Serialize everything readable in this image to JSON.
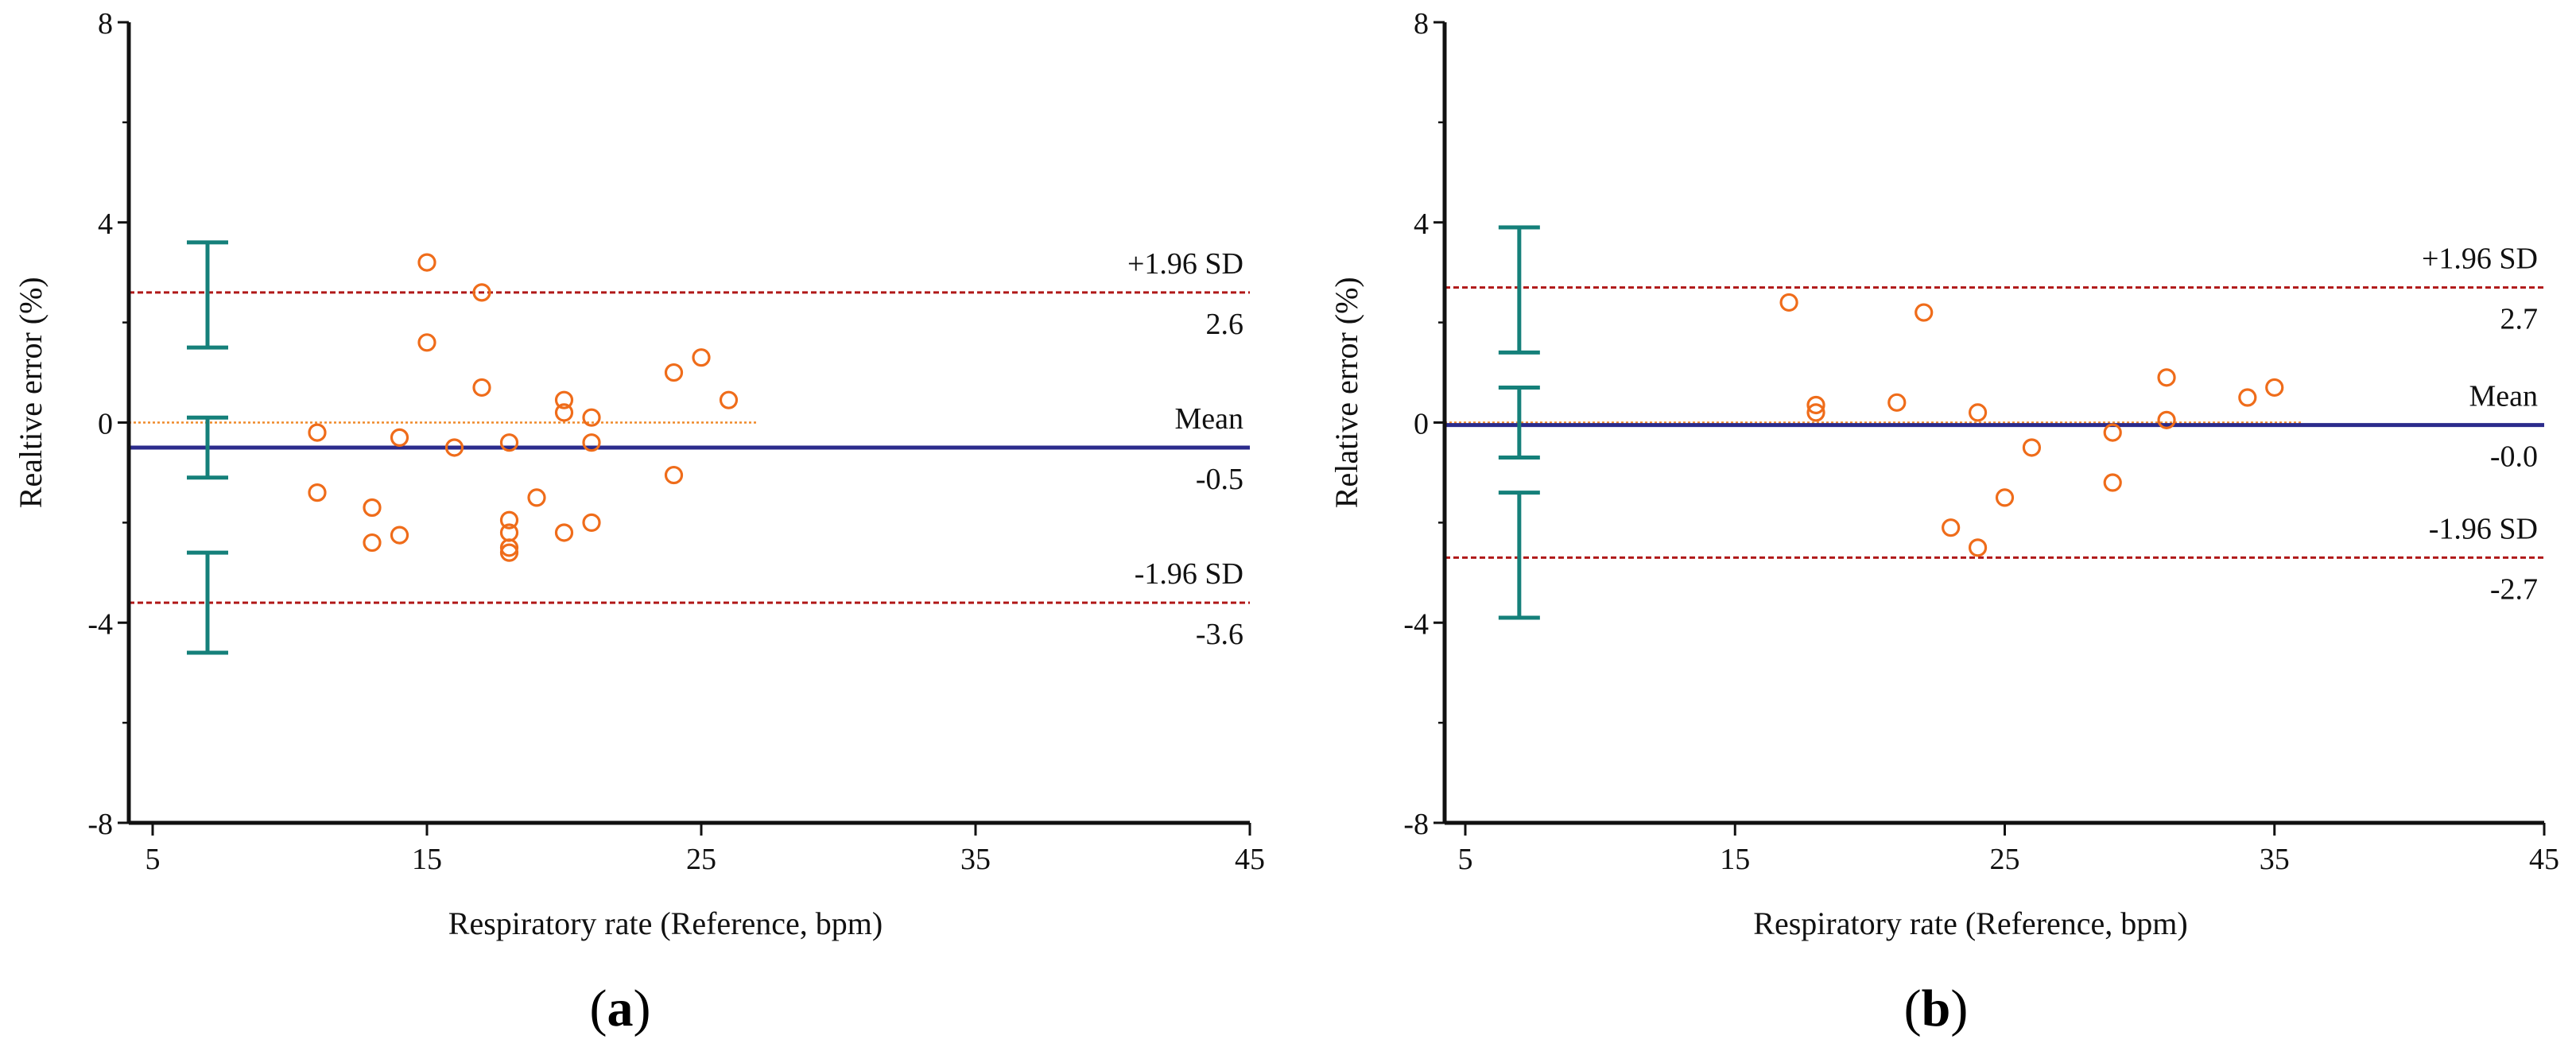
{
  "chart_data": [
    {
      "type": "scatter",
      "panel_label": "a",
      "xlabel": "Respiratory rate (Reference, bpm)",
      "ylabel": "Realtive error (%)",
      "xlim": [
        5,
        45
      ],
      "ylim": [
        -8,
        8
      ],
      "x_ticks": [
        "5",
        "15",
        "25",
        "35",
        "45"
      ],
      "y_ticks": [
        "8",
        "4",
        "0",
        "-4",
        "-8"
      ],
      "points": [
        {
          "x": 11,
          "y": -0.2
        },
        {
          "x": 11,
          "y": -1.4
        },
        {
          "x": 13,
          "y": -1.7
        },
        {
          "x": 13,
          "y": -2.4
        },
        {
          "x": 14,
          "y": -0.3
        },
        {
          "x": 14,
          "y": -2.25
        },
        {
          "x": 15,
          "y": 3.2
        },
        {
          "x": 15,
          "y": 1.6
        },
        {
          "x": 16,
          "y": -0.5
        },
        {
          "x": 17,
          "y": 2.6
        },
        {
          "x": 17,
          "y": 0.7
        },
        {
          "x": 18,
          "y": -0.4
        },
        {
          "x": 18,
          "y": -1.95
        },
        {
          "x": 18,
          "y": -2.2
        },
        {
          "x": 18,
          "y": -2.5
        },
        {
          "x": 18,
          "y": -2.6
        },
        {
          "x": 19,
          "y": -1.5
        },
        {
          "x": 20,
          "y": 0.45
        },
        {
          "x": 20,
          "y": 0.2
        },
        {
          "x": 20,
          "y": -2.2
        },
        {
          "x": 21,
          "y": 0.1
        },
        {
          "x": 21,
          "y": -0.4
        },
        {
          "x": 21,
          "y": -2.0
        },
        {
          "x": 24,
          "y": 1.0
        },
        {
          "x": 24,
          "y": -1.05
        },
        {
          "x": 25,
          "y": 1.3
        },
        {
          "x": 26,
          "y": 0.45
        }
      ],
      "zero_line": {
        "y": 0,
        "x_end": 27
      },
      "lines": [
        {
          "name": "+1.96 SD",
          "value": 2.6,
          "value_label": "2.6",
          "style": "dashed",
          "color": "#b01818"
        },
        {
          "name": "Mean",
          "value": -0.5,
          "value_label": "-0.5",
          "style": "solid",
          "color": "#2b2b8c"
        },
        {
          "name": "-1.96 SD",
          "value": -3.6,
          "value_label": "-3.6",
          "style": "dashed",
          "color": "#b01818"
        }
      ],
      "ci_bars": [
        {
          "low": 1.5,
          "high": 3.6
        },
        {
          "low": -1.1,
          "high": 0.1
        },
        {
          "low": -4.6,
          "high": -2.6
        }
      ],
      "ci_x": 7,
      "colors": {
        "points": "#ef6c1a",
        "ci": "#15807a",
        "axis": "#111111",
        "zero_line": "#ef8a2a"
      }
    },
    {
      "type": "scatter",
      "panel_label": "b",
      "xlabel": "Respiratory rate (Reference, bpm)",
      "ylabel": "Relative error (%)",
      "xlim": [
        5,
        45
      ],
      "ylim": [
        -8,
        8
      ],
      "x_ticks": [
        "5",
        "15",
        "25",
        "35",
        "45"
      ],
      "y_ticks": [
        "8",
        "4",
        "0",
        "-4",
        "-8"
      ],
      "points": [
        {
          "x": 17,
          "y": 2.4
        },
        {
          "x": 18,
          "y": 0.35
        },
        {
          "x": 18,
          "y": 0.2
        },
        {
          "x": 21,
          "y": 0.4
        },
        {
          "x": 22,
          "y": 2.2
        },
        {
          "x": 23,
          "y": -2.1
        },
        {
          "x": 24,
          "y": 0.2
        },
        {
          "x": 24,
          "y": -2.5
        },
        {
          "x": 25,
          "y": -1.5
        },
        {
          "x": 26,
          "y": -0.5
        },
        {
          "x": 29,
          "y": -0.2
        },
        {
          "x": 29,
          "y": -1.2
        },
        {
          "x": 31,
          "y": 0.9
        },
        {
          "x": 31,
          "y": 0.05
        },
        {
          "x": 34,
          "y": 0.5
        },
        {
          "x": 35,
          "y": 0.7
        }
      ],
      "zero_line": {
        "y": 0,
        "x_end": 36
      },
      "lines": [
        {
          "name": "+1.96 SD",
          "value": 2.7,
          "value_label": "2.7",
          "style": "dashed",
          "color": "#b01818"
        },
        {
          "name": "Mean",
          "value": -0.05,
          "value_label": "-0.0",
          "style": "solid",
          "color": "#2b2b8c"
        },
        {
          "name": "-1.96 SD",
          "value": -2.7,
          "value_label": "-2.7",
          "style": "dashed",
          "color": "#b01818"
        }
      ],
      "ci_bars": [
        {
          "low": 1.4,
          "high": 3.9
        },
        {
          "low": -0.7,
          "high": 0.7
        },
        {
          "low": -3.9,
          "high": -1.4
        }
      ],
      "ci_x": 7,
      "colors": {
        "points": "#ef6c1a",
        "ci": "#15807a",
        "axis": "#111111",
        "zero_line": "#ef8a2a"
      }
    }
  ]
}
